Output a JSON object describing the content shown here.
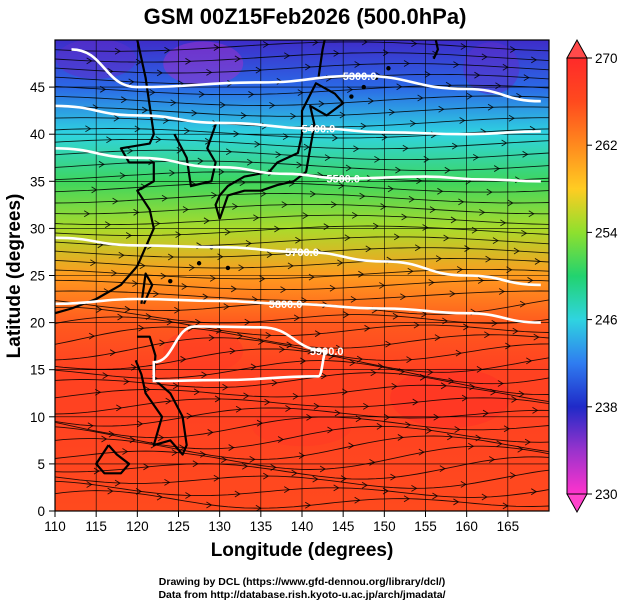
{
  "chart_data": {
    "type": "heatmap",
    "title": "GSM 00Z15Feb2026 (500.0hPa)",
    "xlabel": "Longitude (degrees)",
    "ylabel": "Latitude  (degrees)",
    "xlim": [
      110,
      170
    ],
    "ylim": [
      0,
      50
    ],
    "xticks": [
      "110",
      "115",
      "120",
      "125",
      "130",
      "135",
      "140",
      "145",
      "150",
      "155",
      "160",
      "165"
    ],
    "yticks": [
      "0",
      "5",
      "10",
      "15",
      "20",
      "25",
      "30",
      "35",
      "40",
      "45"
    ],
    "colorbar": {
      "min": 230,
      "max": 270,
      "tick_labels": [
        "230",
        "238",
        "246",
        "254",
        "262",
        "270"
      ],
      "colors": [
        "#ff33cc",
        "#9933cc",
        "#1f2ac8",
        "#2f7cf0",
        "#2fd4e0",
        "#22d36f",
        "#8ee02e",
        "#ffcc22",
        "#ff8a1e",
        "#ff4a1e",
        "#ff2a2a"
      ]
    },
    "contours": [
      {
        "label": "5300.0",
        "lat_points": [
          [
            112,
            49
          ],
          [
            120,
            45
          ],
          [
            135,
            45.5
          ],
          [
            147,
            46.2
          ],
          [
            160,
            44.8
          ],
          [
            169,
            43.5
          ]
        ]
      },
      {
        "label": "5400.0",
        "lat_points": [
          [
            110,
            43
          ],
          [
            120,
            42
          ],
          [
            130,
            41.2
          ],
          [
            142,
            40.6
          ],
          [
            150,
            40.2
          ],
          [
            160,
            40
          ],
          [
            169,
            40.3
          ]
        ]
      },
      {
        "label": "5500.0",
        "lat_points": [
          [
            110,
            38.5
          ],
          [
            120,
            37.5
          ],
          [
            130,
            36.5
          ],
          [
            138,
            35.8
          ],
          [
            145,
            35.3
          ],
          [
            155,
            35.5
          ],
          [
            162,
            35.2
          ],
          [
            169,
            35
          ]
        ]
      },
      {
        "label": "5700.0",
        "lat_points": [
          [
            110,
            29
          ],
          [
            120,
            28.2
          ],
          [
            130,
            28
          ],
          [
            140,
            27.5
          ],
          [
            150,
            26.5
          ],
          [
            160,
            25
          ],
          [
            169,
            24
          ]
        ]
      },
      {
        "label": "5800.0",
        "lat_points": [
          [
            110,
            22
          ],
          [
            120,
            22.5
          ],
          [
            130,
            22.3
          ],
          [
            138,
            22
          ],
          [
            150,
            21.5
          ],
          [
            160,
            21
          ],
          [
            169,
            20
          ]
        ]
      },
      {
        "label": "5900.0",
        "lat_points": [
          [
            122,
            15.8
          ],
          [
            127,
            19.6
          ],
          [
            135,
            19.5
          ],
          [
            143,
            17
          ],
          [
            142,
            14.3
          ],
          [
            130,
            13.9
          ],
          [
            122,
            13.8
          ]
        ]
      }
    ],
    "temperature_bands_lat": [
      {
        "lat": 50,
        "value": 237
      },
      {
        "lat": 45,
        "value": 241
      },
      {
        "lat": 40,
        "value": 246
      },
      {
        "lat": 35,
        "value": 251
      },
      {
        "lat": 30,
        "value": 255
      },
      {
        "lat": 25,
        "value": 261
      },
      {
        "lat": 20,
        "value": 265
      },
      {
        "lat": 15,
        "value": 267
      },
      {
        "lat": 10,
        "value": 267
      },
      {
        "lat": 0,
        "value": 266
      }
    ]
  },
  "credits": {
    "line1": "Drawing by DCL (https://www.gfd-dennou.org/library/dcl/)",
    "line2": "Data from http://database.rish.kyoto-u.ac.jp/arch/jmadata/"
  }
}
